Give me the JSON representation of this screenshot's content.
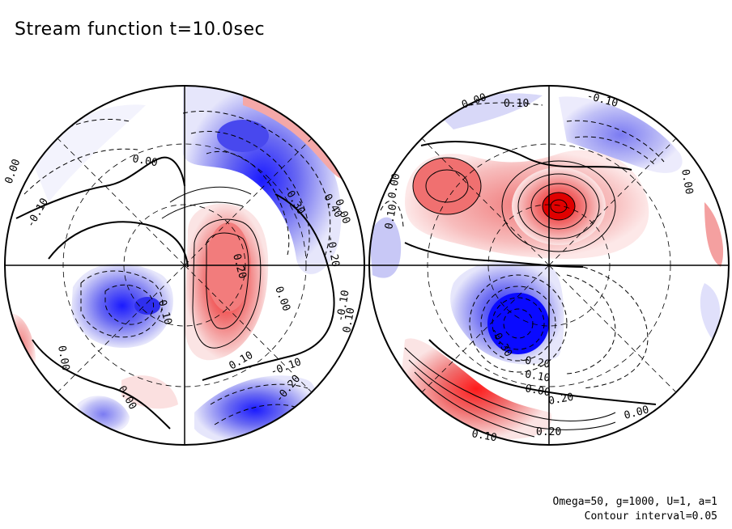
{
  "title": "Stream function t=10.0sec",
  "footer": {
    "params": "Omega=50, g=1000, U=1, a=1",
    "interval": "Contour interval=0.05"
  },
  "colors": {
    "negative": "#0000ff",
    "positive": "#ff0000",
    "neutral": "#ffffff",
    "contour": "#000000"
  },
  "chart_data": {
    "type": "heatmap",
    "title": "Stream function t=10.0sec",
    "projection": "orthographic, two hemispheres",
    "contour_interval": 0.05,
    "color_scale": "blue (negative) - white (0) - red (positive)",
    "hemispheres": [
      {
        "name": "left",
        "features": [
          {
            "sign": "negative",
            "peak": -0.4
          },
          {
            "sign": "positive",
            "peak": 0.25
          },
          {
            "sign": "negative",
            "peak": -0.15
          },
          {
            "sign": "negative",
            "peak": -0.25
          },
          {
            "sign": "positive",
            "peak": 0.1
          }
        ],
        "labels": [
          "0.00",
          "0.00",
          "-0.10",
          "0.10",
          "-0.30",
          "-0.40",
          "0.00",
          "-0.20",
          "0.20",
          "0.00",
          "-0.10",
          "0.10",
          "-0.10",
          "-0.20",
          "0.00",
          "0.10",
          "0.00"
        ]
      },
      {
        "name": "right",
        "features": [
          {
            "sign": "positive",
            "peak": 0.45
          },
          {
            "sign": "positive",
            "peak": 0.2
          },
          {
            "sign": "negative",
            "peak": -0.4
          },
          {
            "sign": "positive",
            "peak": 0.25
          },
          {
            "sign": "negative",
            "peak": -0.15
          },
          {
            "sign": "negative",
            "peak": -0.15
          }
        ],
        "labels": [
          "0.00",
          "0.10",
          "-0.10",
          "0.00",
          "-0.30",
          "-0.20",
          "-0.10",
          "0.00",
          "0.20",
          "0.10",
          "0.20",
          "0.00",
          "0.00",
          "0.10"
        ]
      }
    ]
  }
}
